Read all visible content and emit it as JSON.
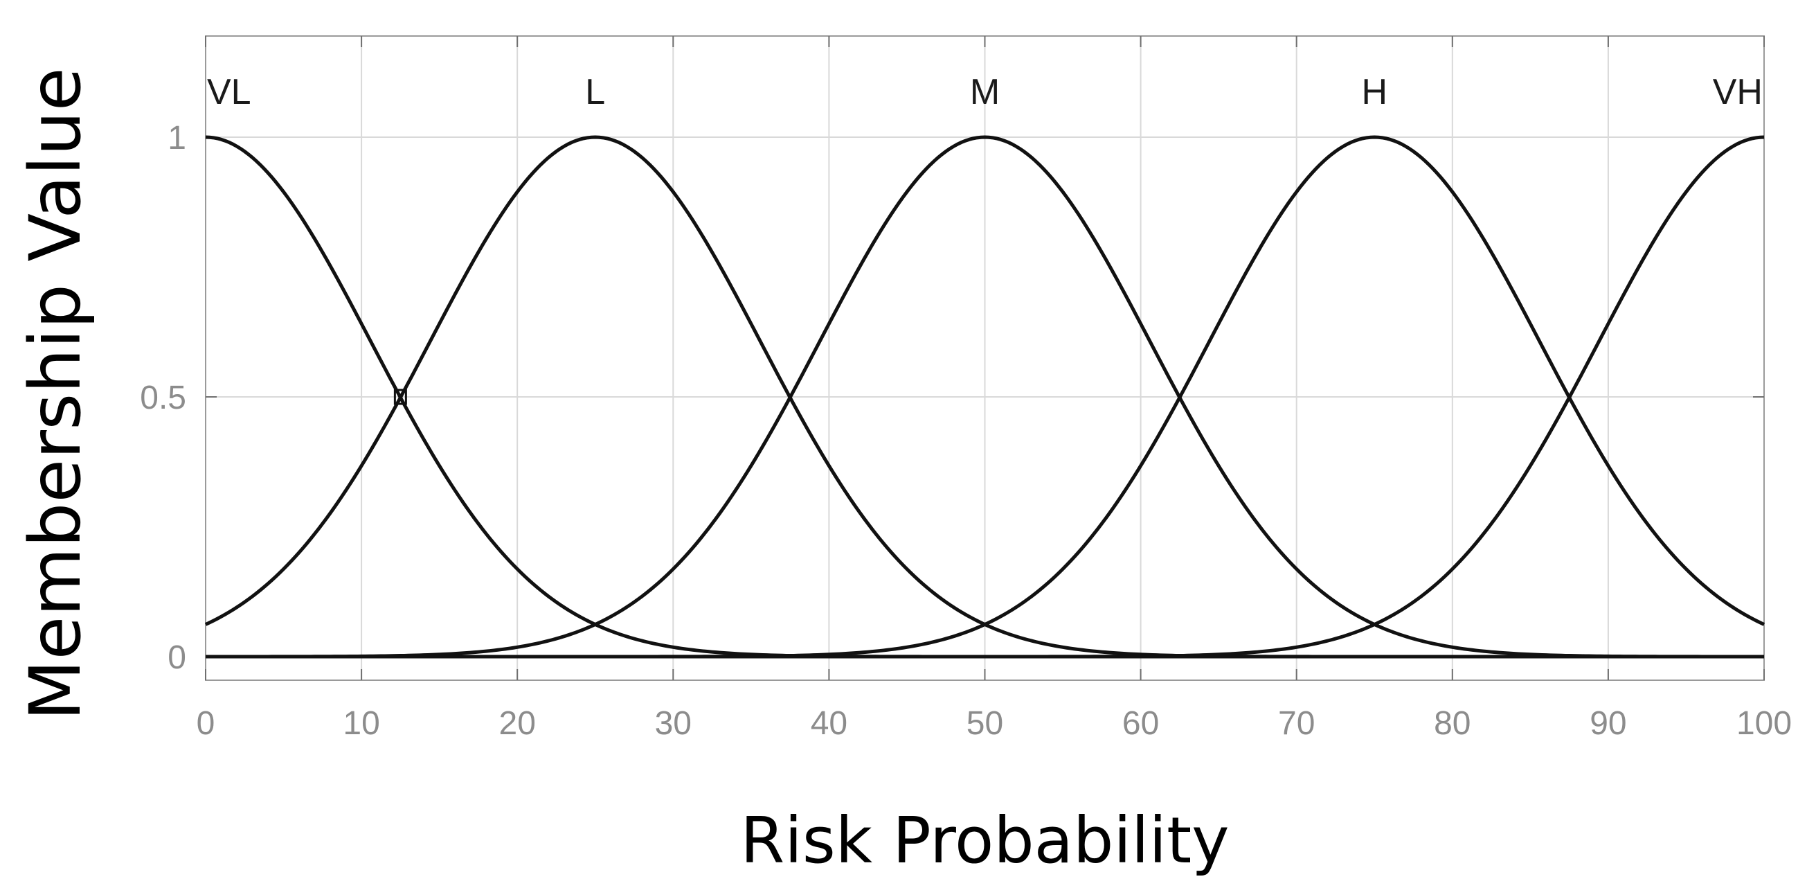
{
  "chart_data": {
    "type": "line",
    "title": "",
    "xlabel": "Risk Probability",
    "ylabel": "Membership Value",
    "xlim": [
      0,
      100
    ],
    "ylim": [
      -0.04,
      1.2
    ],
    "xticks": [
      "0",
      "10",
      "20",
      "30",
      "40",
      "50",
      "60",
      "70",
      "80",
      "90",
      "100"
    ],
    "yticks": [
      "0",
      "0.5",
      "1"
    ],
    "grid": true,
    "legend": "none",
    "sigma": 10.6,
    "series": [
      {
        "name": "VL",
        "center": 0
      },
      {
        "name": "L",
        "center": 25
      },
      {
        "name": "M",
        "center": 50
      },
      {
        "name": "H",
        "center": 75
      },
      {
        "name": "VH",
        "center": 100
      }
    ],
    "baseline": 0,
    "crossing_marker": {
      "x": 12.5,
      "y": 0.5
    },
    "colors": {
      "curve": "#111111",
      "tick_text": "#8c8c8c",
      "grid": "#d9d9d9"
    }
  }
}
